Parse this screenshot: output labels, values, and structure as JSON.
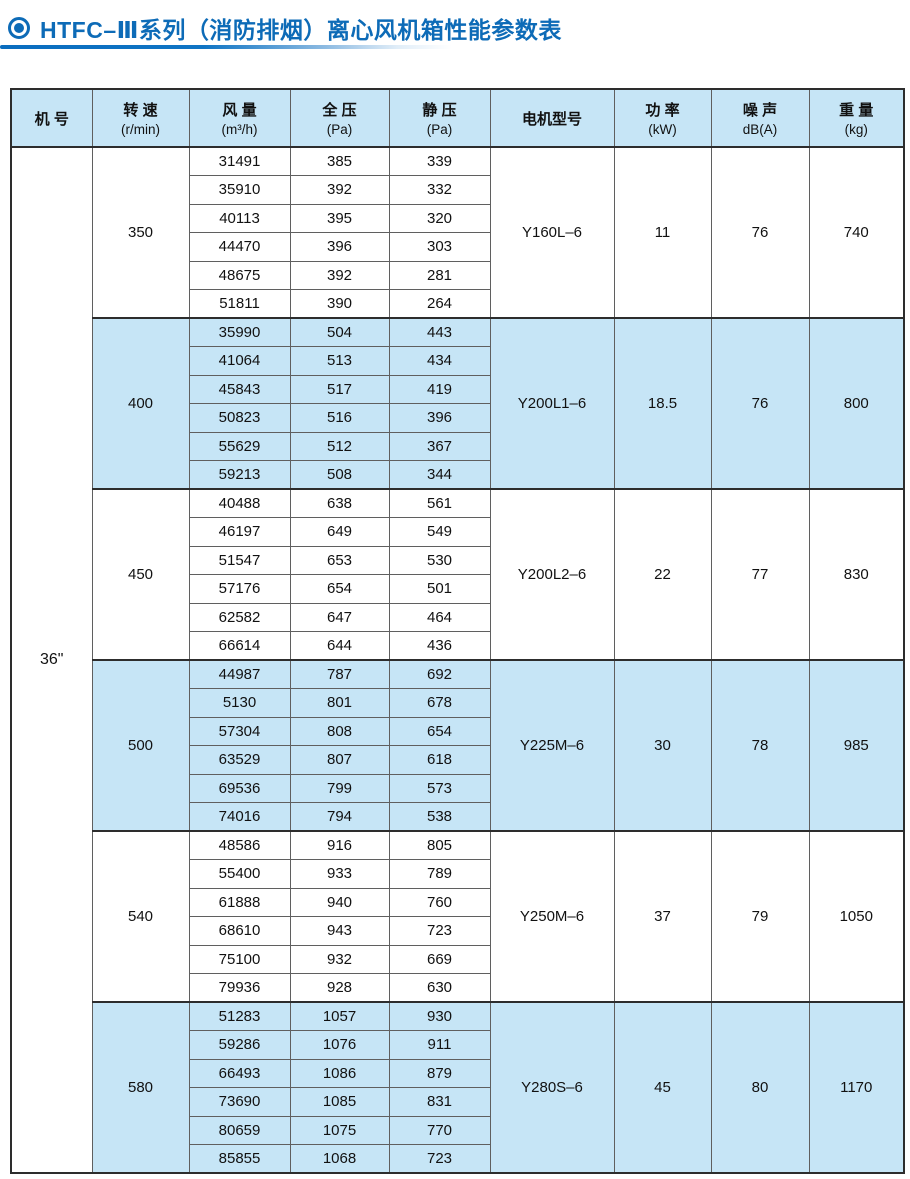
{
  "page": {
    "title": "HTFC–Ⅲ系列（消防排烟）离心风机箱性能参数表",
    "accent_color": "#0d6bb7",
    "highlight_row_color": "#c6e5f6"
  },
  "table": {
    "headers": [
      {
        "line1": "机 号",
        "line2": ""
      },
      {
        "line1": "转 速",
        "line2": "(r/min)"
      },
      {
        "line1": "风 量",
        "line2": "(m³/h)"
      },
      {
        "line1": "全 压",
        "line2": "(Pa)"
      },
      {
        "line1": "静 压",
        "line2": "(Pa)"
      },
      {
        "line1": "电机型号",
        "line2": ""
      },
      {
        "line1": "功 率",
        "line2": "(kW)"
      },
      {
        "line1": "噪 声",
        "line2": "dB(A)"
      },
      {
        "line1": "重 量",
        "line2": "(kg)"
      }
    ],
    "machine_no": "36\"",
    "sections": [
      {
        "speed": "350",
        "rows": [
          [
            "31491",
            "385",
            "339"
          ],
          [
            "35910",
            "392",
            "332"
          ],
          [
            "40113",
            "395",
            "320"
          ],
          [
            "44470",
            "396",
            "303"
          ],
          [
            "48675",
            "392",
            "281"
          ],
          [
            "51811",
            "390",
            "264"
          ]
        ],
        "motor": "Y160L–6",
        "power": "11",
        "noise": "76",
        "weight": "740",
        "highlight": false
      },
      {
        "speed": "400",
        "rows": [
          [
            "35990",
            "504",
            "443"
          ],
          [
            "41064",
            "513",
            "434"
          ],
          [
            "45843",
            "517",
            "419"
          ],
          [
            "50823",
            "516",
            "396"
          ],
          [
            "55629",
            "512",
            "367"
          ],
          [
            "59213",
            "508",
            "344"
          ]
        ],
        "motor": "Y200L1–6",
        "power": "18.5",
        "noise": "76",
        "weight": "800",
        "highlight": true
      },
      {
        "speed": "450",
        "rows": [
          [
            "40488",
            "638",
            "561"
          ],
          [
            "46197",
            "649",
            "549"
          ],
          [
            "51547",
            "653",
            "530"
          ],
          [
            "57176",
            "654",
            "501"
          ],
          [
            "62582",
            "647",
            "464"
          ],
          [
            "66614",
            "644",
            "436"
          ]
        ],
        "motor": "Y200L2–6",
        "power": "22",
        "noise": "77",
        "weight": "830",
        "highlight": false
      },
      {
        "speed": "500",
        "rows": [
          [
            "44987",
            "787",
            "692"
          ],
          [
            "5130",
            "801",
            "678"
          ],
          [
            "57304",
            "808",
            "654"
          ],
          [
            "63529",
            "807",
            "618"
          ],
          [
            "69536",
            "799",
            "573"
          ],
          [
            "74016",
            "794",
            "538"
          ]
        ],
        "motor": "Y225M–6",
        "power": "30",
        "noise": "78",
        "weight": "985",
        "highlight": true
      },
      {
        "speed": "540",
        "rows": [
          [
            "48586",
            "916",
            "805"
          ],
          [
            "55400",
            "933",
            "789"
          ],
          [
            "61888",
            "940",
            "760"
          ],
          [
            "68610",
            "943",
            "723"
          ],
          [
            "75100",
            "932",
            "669"
          ],
          [
            "79936",
            "928",
            "630"
          ]
        ],
        "motor": "Y250M–6",
        "power": "37",
        "noise": "79",
        "weight": "1050",
        "highlight": false
      },
      {
        "speed": "580",
        "rows": [
          [
            "51283",
            "1057",
            "930"
          ],
          [
            "59286",
            "1076",
            "911"
          ],
          [
            "66493",
            "1086",
            "879"
          ],
          [
            "73690",
            "1085",
            "831"
          ],
          [
            "80659",
            "1075",
            "770"
          ],
          [
            "85855",
            "1068",
            "723"
          ]
        ],
        "motor": "Y280S–6",
        "power": "45",
        "noise": "80",
        "weight": "1170",
        "highlight": true
      }
    ]
  }
}
